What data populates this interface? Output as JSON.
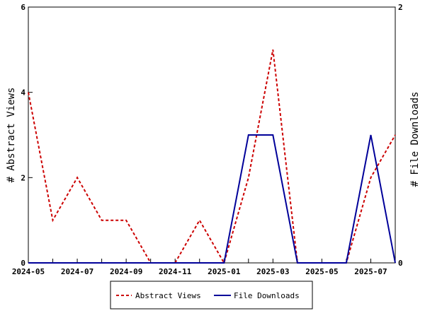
{
  "chart_data": {
    "type": "line",
    "title": "",
    "xlabel": "",
    "ylabel_left": "# Abstract Views",
    "ylabel_right": "# File Downloads",
    "x": [
      "2024-05",
      "2024-06",
      "2024-07",
      "2024-08",
      "2024-09",
      "2024-10",
      "2024-11",
      "2024-12",
      "2025-01",
      "2025-02",
      "2025-03",
      "2025-04",
      "2025-05",
      "2025-06",
      "2025-07",
      "2025-08"
    ],
    "x_ticks": [
      "2024-05",
      "2024-07",
      "2024-09",
      "2024-11",
      "2025-01",
      "2025-03",
      "2025-05",
      "2025-07"
    ],
    "ylim_left": [
      0,
      6
    ],
    "yticks_left": [
      0,
      2,
      4,
      6
    ],
    "ylim_right": [
      0,
      2
    ],
    "yticks_right": [
      0,
      2
    ],
    "grid": false,
    "legend_position": "bottom",
    "series": [
      {
        "name": "Abstract Views",
        "axis": "left",
        "color": "#cc0000",
        "dash": "dashed",
        "points": [
          {
            "x": "2024-05",
            "y": 4
          },
          {
            "x": "2024-06",
            "y": 1
          },
          {
            "x": "2024-07",
            "y": 2
          },
          {
            "x": "2024-08",
            "y": 1
          },
          {
            "x": "2024-09",
            "y": 1
          },
          {
            "x": "2024-10",
            "y": 0
          },
          {
            "x": "2024-11",
            "y": 0
          },
          {
            "x": "2024-12",
            "y": 1
          },
          {
            "x": "2025-01",
            "y": 0
          },
          {
            "x": "2025-02",
            "y": 2
          },
          {
            "x": "2025-03",
            "y": 5
          },
          {
            "x": "2025-04",
            "y": 0
          },
          {
            "x": "2025-05",
            "y": 0
          },
          {
            "x": "2025-06",
            "y": 0
          },
          {
            "x": "2025-07",
            "y": 2
          },
          {
            "x": "2025-08",
            "y": 3
          }
        ]
      },
      {
        "name": "File Downloads",
        "axis": "right",
        "color": "#000099",
        "dash": "solid",
        "points": [
          {
            "x": "2024-05",
            "y": 0
          },
          {
            "x": "2025-01",
            "y": 0
          },
          {
            "x": "2025-02",
            "y": 1
          },
          {
            "x": "2025-03",
            "y": 1
          },
          {
            "x": "2025-04",
            "y": 0
          },
          {
            "x": "2025-06",
            "y": 0
          },
          {
            "x": "2025-07",
            "y": 1
          },
          {
            "x": "2025-08",
            "y": 0
          }
        ]
      }
    ]
  }
}
